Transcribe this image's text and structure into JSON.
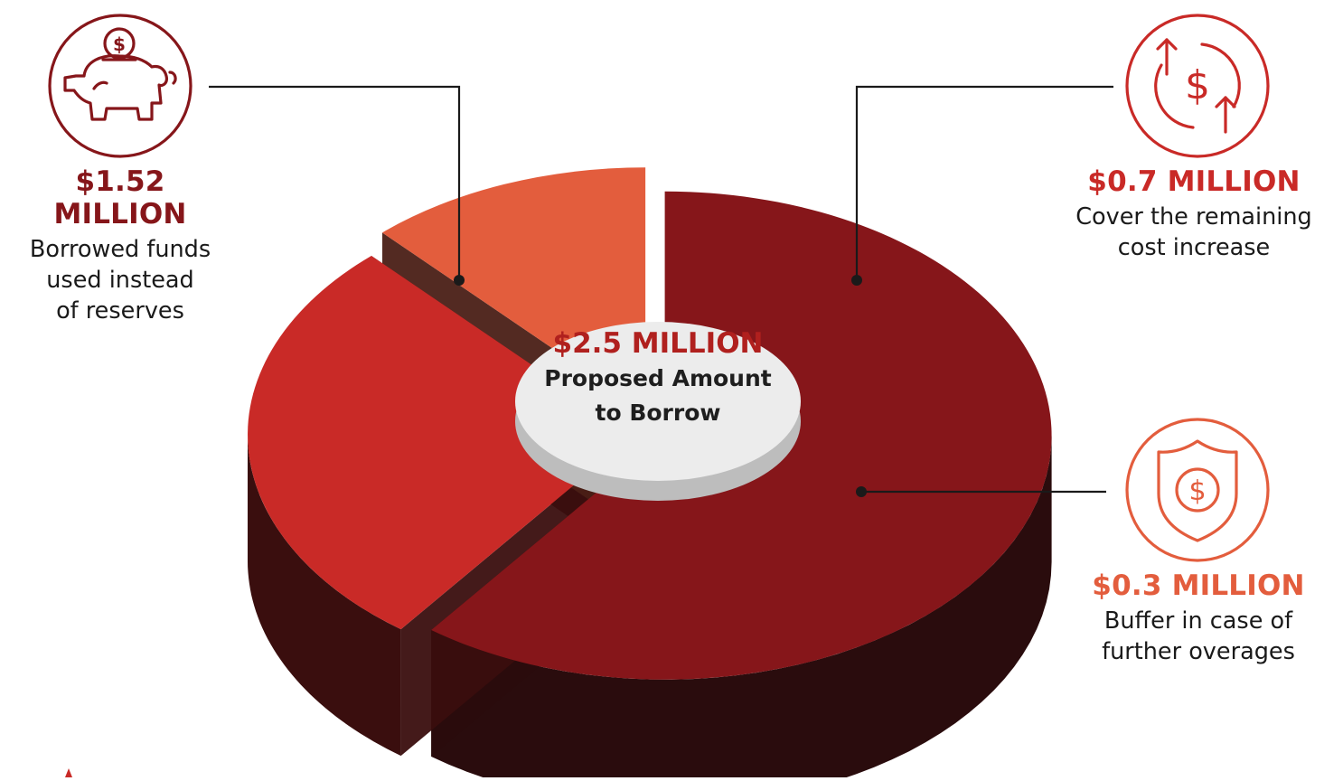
{
  "colors": {
    "dark_red": "#86161a",
    "red": "#c92a27",
    "orange": "#e35d3d",
    "disc": "#ececec",
    "line": "#1a1a1a"
  },
  "center": {
    "amount": "$2.5 MILLION",
    "line1": "Proposed Amount",
    "line2": "to Borrow"
  },
  "chart_data": {
    "type": "pie",
    "title": "",
    "total": 2.5,
    "unit": "MILLION",
    "slices": [
      {
        "label": "$1.52 MILLION",
        "value": 1.52,
        "description": [
          "Borrowed funds",
          "used instead",
          "of reserves"
        ],
        "color": "#86161a",
        "icon": "piggy-bank-icon"
      },
      {
        "label": "$0.7 MILLION",
        "value": 0.7,
        "description": [
          "Cover the remaining",
          "cost increase"
        ],
        "color": "#c92a27",
        "icon": "circular-dollar-arrows-icon"
      },
      {
        "label": "$0.3 MILLION",
        "value": 0.3,
        "description": [
          "Buffer in case of",
          "further overages"
        ],
        "color": "#e35d3d",
        "icon": "shield-dollar-icon"
      }
    ]
  }
}
